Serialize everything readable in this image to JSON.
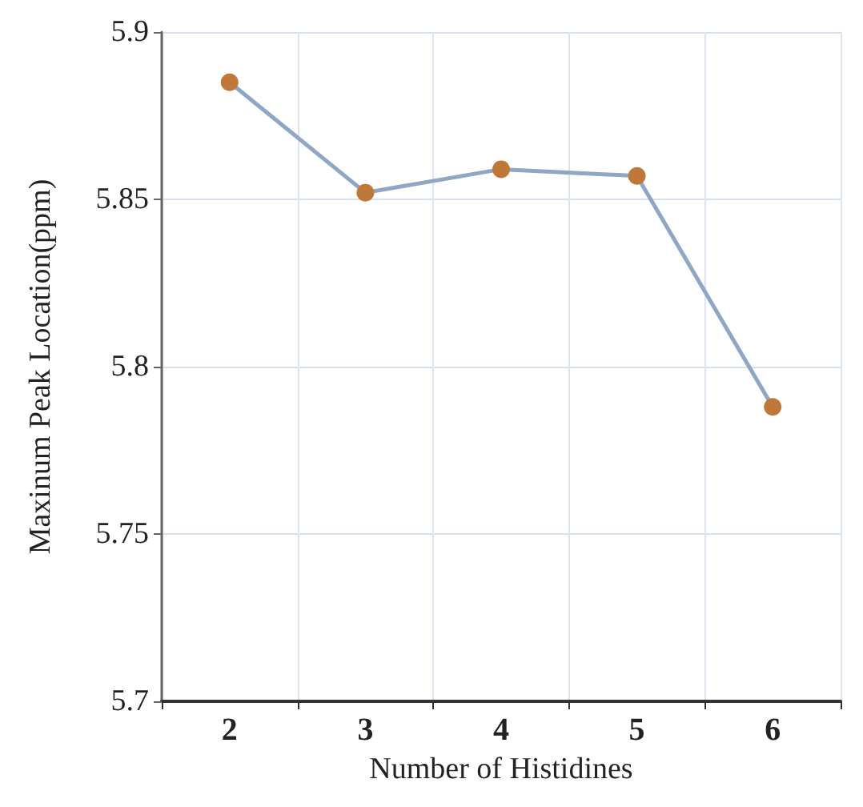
{
  "chart_data": {
    "type": "line",
    "xlabel": "Number of Histidines",
    "ylabel": "Maxinum Peak Location(ppm)",
    "categories": [
      "2",
      "3",
      "4",
      "5",
      "6"
    ],
    "series": [
      {
        "color": "#8fa6c4",
        "values": [
          5.885,
          5.852,
          5.859,
          5.857,
          5.788
        ]
      }
    ],
    "ylim": [
      5.7,
      5.9
    ],
    "yticks": [
      5.7,
      5.75,
      5.8,
      5.85,
      5.9
    ],
    "grid": true,
    "marker": "circle",
    "line_style": "solid"
  }
}
